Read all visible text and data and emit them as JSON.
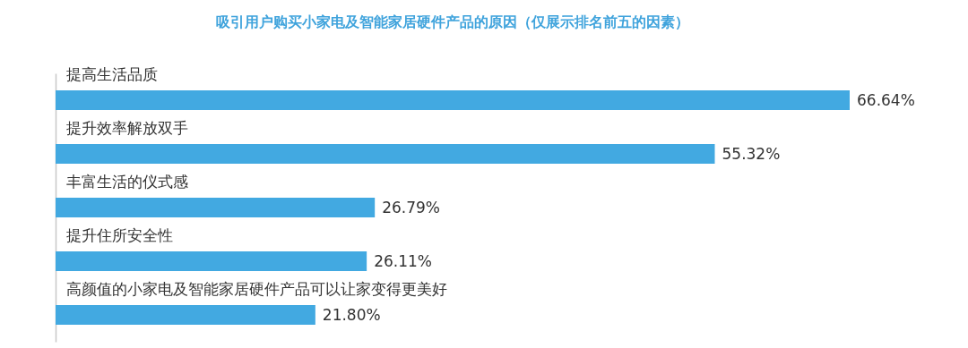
{
  "chart_data": {
    "type": "bar",
    "orientation": "horizontal",
    "title": "吸引用户购买小家电及智能家居硬件产品的原因（仅展示排名前五的因素）",
    "categories": [
      "提高生活品质",
      "提升效率解放双手",
      "丰富生活的仪式感",
      "提升住所安全性",
      "高颜值的小家电及智能家居硬件产品可以让家变得更美好"
    ],
    "values": [
      66.64,
      55.32,
      26.79,
      26.11,
      21.8
    ],
    "value_labels": [
      "66.64%",
      "55.32%",
      "26.79%",
      "26.11%",
      "21.80%"
    ],
    "color": "#42a9e1"
  }
}
